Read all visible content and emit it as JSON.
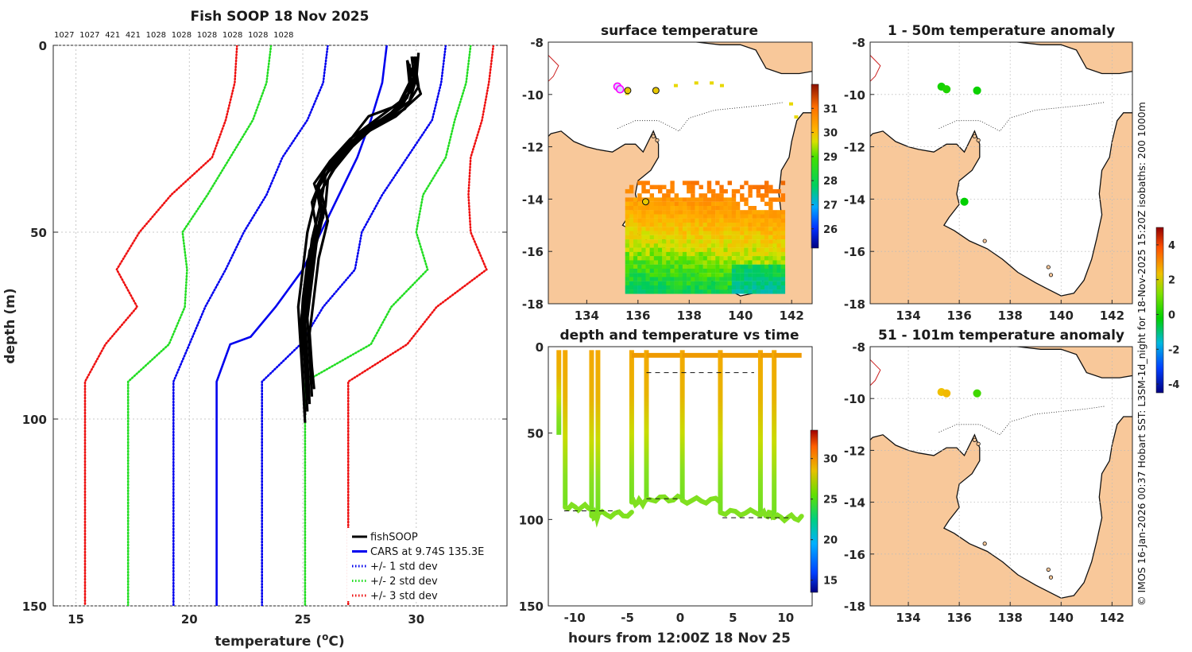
{
  "chart_data": [
    {
      "id": "profile",
      "type": "line",
      "title": "Fish SOOP 18 Nov 2025",
      "xlabel": "temperature (°C)",
      "xlabel_main": "temperature (",
      "xlabel_deg": "o",
      "xlabel_tail": "C)",
      "ylabel": "depth (m)",
      "xlim": [
        14,
        34
      ],
      "ylim": [
        0,
        150
      ],
      "y_reversed": true,
      "xticks": [
        15,
        20,
        25,
        30
      ],
      "yticks": [
        0,
        50,
        100,
        150
      ],
      "grid": true,
      "top_annotations": [
        "1027",
        "1027",
        "421",
        "421",
        "1028",
        "1028",
        "1028",
        "1028",
        "1028",
        "1028"
      ],
      "legend_position": "bottom-right",
      "series": [
        {
          "name": "fishSOOP",
          "color": "#000000",
          "style": "solid",
          "width": 3.2,
          "profiles": [
            [
              [
                29.8,
                3
              ],
              [
                29.9,
                8
              ],
              [
                29.6,
                14
              ],
              [
                29.0,
                18
              ],
              [
                27.8,
                22
              ],
              [
                26.8,
                28
              ],
              [
                25.9,
                34
              ],
              [
                25.6,
                40
              ],
              [
                25.2,
                50
              ],
              [
                25.0,
                60
              ],
              [
                24.8,
                70
              ],
              [
                24.9,
                80
              ],
              [
                25.0,
                90
              ],
              [
                25.1,
                101
              ]
            ],
            [
              [
                30.1,
                2
              ],
              [
                30.0,
                9
              ],
              [
                29.7,
                15
              ],
              [
                28.6,
                20
              ],
              [
                27.5,
                24
              ],
              [
                26.5,
                29
              ],
              [
                26.0,
                35
              ],
              [
                25.8,
                42
              ],
              [
                25.4,
                52
              ],
              [
                25.2,
                62
              ],
              [
                25.0,
                72
              ],
              [
                25.1,
                82
              ],
              [
                25.2,
                93
              ]
            ],
            [
              [
                29.6,
                4
              ],
              [
                29.7,
                10
              ],
              [
                29.2,
                16
              ],
              [
                27.9,
                19
              ],
              [
                27.0,
                26
              ],
              [
                26.2,
                31
              ],
              [
                25.5,
                37
              ],
              [
                25.9,
                44
              ],
              [
                25.5,
                54
              ],
              [
                25.3,
                64
              ],
              [
                25.1,
                74
              ],
              [
                25.2,
                84
              ],
              [
                25.3,
                96
              ]
            ],
            [
              [
                29.9,
                3
              ],
              [
                30.1,
                11
              ],
              [
                29.5,
                17
              ],
              [
                28.4,
                21
              ],
              [
                27.4,
                25
              ],
              [
                26.6,
                30
              ],
              [
                26.1,
                36
              ],
              [
                26.0,
                43
              ],
              [
                25.6,
                53
              ],
              [
                25.4,
                63
              ],
              [
                25.2,
                73
              ],
              [
                25.3,
                83
              ],
              [
                25.4,
                94
              ]
            ],
            [
              [
                29.7,
                5
              ],
              [
                29.8,
                12
              ],
              [
                28.9,
                18
              ],
              [
                27.7,
                23
              ],
              [
                26.9,
                27
              ],
              [
                26.3,
                32
              ],
              [
                25.7,
                38
              ],
              [
                25.9,
                46
              ],
              [
                25.3,
                55
              ],
              [
                25.1,
                65
              ],
              [
                24.9,
                75
              ],
              [
                25.1,
                85
              ],
              [
                25.2,
                98
              ]
            ],
            [
              [
                30.0,
                3
              ],
              [
                29.9,
                10
              ],
              [
                29.4,
                16
              ],
              [
                28.1,
                22
              ],
              [
                27.2,
                27
              ],
              [
                26.4,
                33
              ],
              [
                25.8,
                39
              ],
              [
                26.1,
                47
              ],
              [
                25.7,
                57
              ],
              [
                25.5,
                67
              ],
              [
                25.3,
                77
              ],
              [
                25.4,
                86
              ],
              [
                25.5,
                92
              ]
            ],
            [
              [
                29.8,
                6
              ],
              [
                30.2,
                13
              ],
              [
                29.1,
                19
              ],
              [
                27.6,
                24
              ],
              [
                26.7,
                30
              ],
              [
                25.8,
                36
              ],
              [
                25.4,
                42
              ],
              [
                25.6,
                49
              ],
              [
                25.2,
                58
              ],
              [
                25.0,
                68
              ],
              [
                24.9,
                78
              ],
              [
                25.0,
                88
              ],
              [
                25.1,
                99
              ]
            ],
            [
              [
                29.6,
                4
              ],
              [
                29.9,
                9
              ],
              [
                29.3,
                15
              ],
              [
                28.2,
                20
              ],
              [
                27.1,
                25
              ],
              [
                26.2,
                31
              ],
              [
                25.6,
                38
              ],
              [
                25.8,
                45
              ],
              [
                25.4,
                56
              ],
              [
                25.2,
                66
              ],
              [
                25.0,
                76
              ],
              [
                25.1,
                87
              ],
              [
                25.2,
                95
              ]
            ]
          ]
        },
        {
          "name": "CARS at 9.74S 135.3E",
          "color": "#0000ee",
          "style": "solid",
          "width": 2.6,
          "points": [
            [
              28.7,
              0
            ],
            [
              28.5,
              10
            ],
            [
              28.0,
              20
            ],
            [
              27.4,
              30
            ],
            [
              26.6,
              40
            ],
            [
              25.8,
              50
            ],
            [
              25.0,
              60
            ],
            [
              23.8,
              70
            ],
            [
              22.7,
              78
            ],
            [
              21.8,
              80
            ],
            [
              21.2,
              90
            ],
            [
              21.2,
              150
            ]
          ]
        },
        {
          "name": "+/- 1 std dev",
          "color": "#0000ee",
          "style": "dotted",
          "width": 2.6,
          "points_low": [
            [
              26.1,
              0
            ],
            [
              25.9,
              10
            ],
            [
              25.2,
              20
            ],
            [
              24.1,
              30
            ],
            [
              23.4,
              40
            ],
            [
              22.4,
              50
            ],
            [
              21.6,
              60
            ],
            [
              20.7,
              70
            ],
            [
              20.0,
              80
            ],
            [
              19.3,
              90
            ],
            [
              19.3,
              150
            ]
          ],
          "points_high": [
            [
              31.3,
              0
            ],
            [
              31.1,
              10
            ],
            [
              30.7,
              20
            ],
            [
              29.6,
              30
            ],
            [
              28.5,
              40
            ],
            [
              27.6,
              50
            ],
            [
              27.3,
              60
            ],
            [
              25.9,
              70
            ],
            [
              24.9,
              80
            ],
            [
              23.2,
              90
            ],
            [
              23.2,
              150
            ]
          ]
        },
        {
          "name": "+/- 2 std dev",
          "color": "#22dd22",
          "style": "dotted",
          "width": 2.6,
          "points_low": [
            [
              23.6,
              0
            ],
            [
              23.4,
              10
            ],
            [
              22.8,
              20
            ],
            [
              21.8,
              30
            ],
            [
              20.8,
              40
            ],
            [
              19.7,
              50
            ],
            [
              19.9,
              60
            ],
            [
              19.8,
              70
            ],
            [
              19.1,
              80
            ],
            [
              17.3,
              90
            ],
            [
              17.3,
              150
            ]
          ],
          "points_high": [
            [
              32.4,
              0
            ],
            [
              32.2,
              10
            ],
            [
              31.7,
              20
            ],
            [
              31.3,
              30
            ],
            [
              30.3,
              40
            ],
            [
              30.0,
              50
            ],
            [
              30.5,
              60
            ],
            [
              28.9,
              70
            ],
            [
              28.0,
              80
            ],
            [
              25.1,
              90
            ],
            [
              25.1,
              150
            ]
          ]
        },
        {
          "name": "+/- 3 std dev",
          "color": "#ee1111",
          "style": "dotted",
          "width": 2.6,
          "points_low": [
            [
              22.1,
              0
            ],
            [
              22.0,
              10
            ],
            [
              21.6,
              20
            ],
            [
              21.0,
              30
            ],
            [
              19.2,
              40
            ],
            [
              17.8,
              50
            ],
            [
              16.8,
              60
            ],
            [
              17.7,
              70
            ],
            [
              16.3,
              80
            ],
            [
              15.4,
              90
            ],
            [
              15.4,
              150
            ]
          ],
          "points_high": [
            [
              33.4,
              0
            ],
            [
              33.2,
              10
            ],
            [
              32.9,
              20
            ],
            [
              32.4,
              30
            ],
            [
              32.3,
              40
            ],
            [
              32.4,
              50
            ],
            [
              33.1,
              60
            ],
            [
              30.9,
              70
            ],
            [
              29.6,
              80
            ],
            [
              27.0,
              90
            ],
            [
              27.0,
              150
            ]
          ]
        }
      ]
    },
    {
      "id": "sst_map",
      "type": "heatmap",
      "title": "surface temperature",
      "xlim": [
        132.5,
        142.8
      ],
      "ylim": [
        -18,
        -8
      ],
      "xticks": [
        134,
        136,
        138,
        140,
        142
      ],
      "yticks": [
        -8,
        -10,
        -12,
        -14,
        -16,
        -18
      ],
      "colorbar_ticks": [
        26,
        27,
        28,
        29,
        30,
        31
      ],
      "colorbar_range": [
        25.2,
        32.0
      ],
      "stations": [
        [
          135.2,
          -9.7
        ],
        [
          135.3,
          -9.8
        ],
        [
          135.6,
          -9.85
        ],
        [
          136.7,
          -9.85
        ],
        [
          136.3,
          -14.1
        ]
      ],
      "highlight_stations": [
        [
          135.2,
          -9.7
        ],
        [
          135.3,
          -9.8
        ]
      ]
    },
    {
      "id": "anom_50",
      "type": "scatter",
      "title": "1 - 50m temperature anomaly",
      "xlim": [
        132.5,
        142.8
      ],
      "ylim": [
        -18,
        -8
      ],
      "xticks": [
        134,
        136,
        138,
        140,
        142
      ],
      "yticks": [
        -8,
        -10,
        -12,
        -14,
        -16,
        -18
      ],
      "points": [
        {
          "lon": 135.3,
          "lat": -9.7,
          "anom": 0.2
        },
        {
          "lon": 135.5,
          "lat": -9.8,
          "anom": 0.3
        },
        {
          "lon": 136.7,
          "lat": -9.85,
          "anom": 0.1
        },
        {
          "lon": 136.2,
          "lat": -14.1,
          "anom": 0.0
        }
      ]
    },
    {
      "id": "anom_101",
      "type": "scatter",
      "title": "51 - 101m temperature anomaly",
      "xlim": [
        132.5,
        142.8
      ],
      "ylim": [
        -18,
        -8
      ],
      "xticks": [
        134,
        136,
        138,
        140,
        142
      ],
      "yticks": [
        -8,
        -10,
        -12,
        -14,
        -16,
        -18
      ],
      "points": [
        {
          "lon": 135.3,
          "lat": -9.75,
          "anom": 2.3
        },
        {
          "lon": 135.5,
          "lat": -9.8,
          "anom": 2.4
        },
        {
          "lon": 136.7,
          "lat": -9.8,
          "anom": 0.6
        }
      ],
      "colorbar_ticks": [
        -4,
        -2,
        0,
        2,
        4
      ],
      "colorbar_range": [
        -4.5,
        5.0
      ]
    },
    {
      "id": "time_depth",
      "type": "scatter",
      "title": "depth and temperature vs time",
      "xlabel": "hours from 12:00Z 18 Nov 25",
      "xlim": [
        -12.5,
        12.5
      ],
      "ylim": [
        0,
        150
      ],
      "y_reversed": true,
      "xticks": [
        -10,
        -5,
        0,
        5,
        10
      ],
      "yticks": [
        0,
        50,
        100,
        150
      ],
      "colorbar_ticks": [
        15,
        20,
        25,
        30
      ],
      "colorbar_range": [
        13.5,
        33.5
      ],
      "segments": [
        {
          "t0": -11.5,
          "t1": -10.9,
          "bottom": 51
        },
        {
          "t0": -10.9,
          "t1": -8.4,
          "bottom": 93
        },
        {
          "t0": -8.4,
          "t1": -7.8,
          "bottom": 98
        },
        {
          "t0": -7.8,
          "t1": -4.6,
          "bottom": 97
        },
        {
          "t0": -4.6,
          "t1": -3.2,
          "bottom": 90
        },
        {
          "t0": -3.2,
          "t1": 0.2,
          "bottom": 88
        },
        {
          "t0": 0.2,
          "t1": 3.8,
          "bottom": 89
        },
        {
          "t0": 3.8,
          "t1": 7.6,
          "bottom": 96
        },
        {
          "t0": 7.6,
          "t1": 8.9,
          "bottom": 97
        },
        {
          "t0": 8.9,
          "t1": 11.5,
          "bottom": 99
        }
      ]
    }
  ],
  "credit_text": "© IMOS 16-Jan-2026 00:37 Hobart SST: L3SM-1d_night for 18-Nov-2025 15:20Z isobaths: 200  1000m"
}
